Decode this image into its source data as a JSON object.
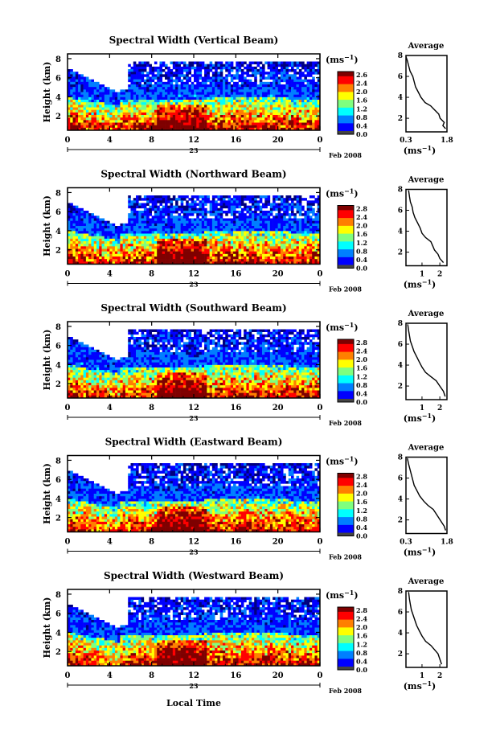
{
  "figure": {
    "xlabel": "Local Time",
    "date_label": "Feb 2008",
    "day_label": "23",
    "colorbar_unit": "(ms",
    "colorbar_unit_exp": "−1",
    "colorbar_unit_close": ")",
    "avg_title": "Average",
    "avg_unit": "(ms",
    "avg_unit_exp": "−1",
    "avg_unit_close": ")",
    "ylabel": "Height (km)",
    "colormap": [
      "#00007f",
      "#0000ff",
      "#007fff",
      "#00ffff",
      "#7fff7f",
      "#ffff00",
      "#ff7f00",
      "#ff0000",
      "#7f0000"
    ]
  },
  "chart_data": [
    {
      "type": "heatmap",
      "title": "Spectral Width (Vertical Beam)",
      "xticks": [
        "0",
        "4",
        "8",
        "12",
        "16",
        "20",
        "0"
      ],
      "yticks": [
        "2",
        "4",
        "6",
        "8"
      ],
      "cbar_ticks": [
        "2.6",
        "2.4",
        "2.0",
        "1.6",
        "1.2",
        "0.8",
        "0.4",
        "0.0"
      ],
      "avg_xticks": [
        "0.3",
        "1.8"
      ],
      "avg_profile": [
        [
          1.75,
          1.0
        ],
        [
          1.65,
          1.3
        ],
        [
          1.7,
          1.6
        ],
        [
          1.55,
          2.0
        ],
        [
          1.5,
          2.4
        ],
        [
          1.35,
          2.8
        ],
        [
          1.2,
          3.2
        ],
        [
          1.0,
          3.5
        ],
        [
          0.85,
          4.0
        ],
        [
          0.75,
          4.5
        ],
        [
          0.65,
          5.0
        ],
        [
          0.6,
          5.5
        ],
        [
          0.55,
          6.0
        ],
        [
          0.45,
          6.5
        ],
        [
          0.4,
          7.0
        ],
        [
          0.35,
          7.5
        ],
        [
          0.3,
          7.9
        ]
      ],
      "avg_xlim": [
        0.3,
        1.8
      ],
      "seed": 11
    },
    {
      "type": "heatmap",
      "title": "Spectral Width (Northward Beam)",
      "xticks": [
        "0",
        "4",
        "8",
        "12",
        "16",
        "20",
        "0"
      ],
      "yticks": [
        "2",
        "4",
        "6",
        "8"
      ],
      "cbar_ticks": [
        "2.8",
        "2.4",
        "2.0",
        "1.6",
        "1.2",
        "0.8",
        "0.4",
        "0.0"
      ],
      "avg_xticks": [
        "1",
        "2"
      ],
      "avg_profile": [
        [
          2.2,
          1.0
        ],
        [
          2.0,
          1.4
        ],
        [
          1.9,
          1.8
        ],
        [
          1.7,
          2.2
        ],
        [
          1.6,
          2.6
        ],
        [
          1.5,
          3.0
        ],
        [
          1.2,
          3.4
        ],
        [
          1.0,
          3.8
        ],
        [
          0.9,
          4.3
        ],
        [
          0.75,
          4.8
        ],
        [
          0.6,
          5.3
        ],
        [
          0.5,
          5.8
        ],
        [
          0.45,
          6.3
        ],
        [
          0.35,
          6.8
        ],
        [
          0.3,
          7.3
        ],
        [
          0.25,
          7.9
        ]
      ],
      "avg_xlim": [
        0.1,
        2.4
      ],
      "seed": 23
    },
    {
      "type": "heatmap",
      "title": "Spectral Width (Southward Beam)",
      "xticks": [
        "0",
        "4",
        "8",
        "12",
        "16",
        "20",
        "0"
      ],
      "yticks": [
        "2",
        "4",
        "6",
        "8"
      ],
      "cbar_ticks": [
        "2.8",
        "2.4",
        "2.0",
        "1.6",
        "1.2",
        "0.8",
        "0.4",
        "0.0"
      ],
      "avg_xticks": [
        "1",
        "2"
      ],
      "avg_profile": [
        [
          2.3,
          1.0
        ],
        [
          2.2,
          1.5
        ],
        [
          2.0,
          2.0
        ],
        [
          1.8,
          2.5
        ],
        [
          1.5,
          2.9
        ],
        [
          1.2,
          3.3
        ],
        [
          1.0,
          3.8
        ],
        [
          0.85,
          4.3
        ],
        [
          0.7,
          4.8
        ],
        [
          0.55,
          5.3
        ],
        [
          0.45,
          5.8
        ],
        [
          0.35,
          6.3
        ],
        [
          0.3,
          6.8
        ],
        [
          0.25,
          7.3
        ],
        [
          0.2,
          7.9
        ]
      ],
      "avg_xlim": [
        0.1,
        2.4
      ],
      "seed": 37
    },
    {
      "type": "heatmap",
      "title": "Spectral Width (Eastward Beam)",
      "xticks": [
        "0",
        "4",
        "8",
        "12",
        "16",
        "20",
        "0"
      ],
      "yticks": [
        "2",
        "4",
        "6",
        "8"
      ],
      "cbar_ticks": [
        "2.8",
        "2.4",
        "2.0",
        "1.6",
        "1.2",
        "0.8",
        "0.4",
        "0.0"
      ],
      "avg_xticks": [
        "0.3",
        "1.8"
      ],
      "avg_profile": [
        [
          1.75,
          1.0
        ],
        [
          1.7,
          1.4
        ],
        [
          1.6,
          1.8
        ],
        [
          1.5,
          2.2
        ],
        [
          1.4,
          2.6
        ],
        [
          1.3,
          3.0
        ],
        [
          1.1,
          3.4
        ],
        [
          0.95,
          3.8
        ],
        [
          0.8,
          4.3
        ],
        [
          0.7,
          4.8
        ],
        [
          0.6,
          5.3
        ],
        [
          0.55,
          5.8
        ],
        [
          0.5,
          6.3
        ],
        [
          0.45,
          6.8
        ],
        [
          0.4,
          7.3
        ],
        [
          0.35,
          7.9
        ]
      ],
      "avg_xlim": [
        0.3,
        1.8
      ],
      "seed": 53
    },
    {
      "type": "heatmap",
      "title": "Spectral Width (Westward Beam)",
      "xticks": [
        "0",
        "4",
        "8",
        "12",
        "16",
        "20",
        "0"
      ],
      "yticks": [
        "2",
        "4",
        "6",
        "8"
      ],
      "cbar_ticks": [
        "2.8",
        "2.4",
        "2.0",
        "1.6",
        "1.2",
        "0.8",
        "0.4",
        "0.0"
      ],
      "avg_xticks": [
        "1",
        "2"
      ],
      "avg_profile": [
        [
          2.1,
          1.0
        ],
        [
          2.0,
          1.5
        ],
        [
          1.9,
          2.0
        ],
        [
          1.7,
          2.4
        ],
        [
          1.5,
          2.8
        ],
        [
          1.2,
          3.2
        ],
        [
          1.0,
          3.7
        ],
        [
          0.85,
          4.2
        ],
        [
          0.7,
          4.7
        ],
        [
          0.6,
          5.2
        ],
        [
          0.5,
          5.7
        ],
        [
          0.4,
          6.2
        ],
        [
          0.35,
          6.7
        ],
        [
          0.3,
          7.2
        ],
        [
          0.25,
          7.9
        ]
      ],
      "avg_xlim": [
        0.1,
        2.4
      ],
      "seed": 71
    }
  ]
}
